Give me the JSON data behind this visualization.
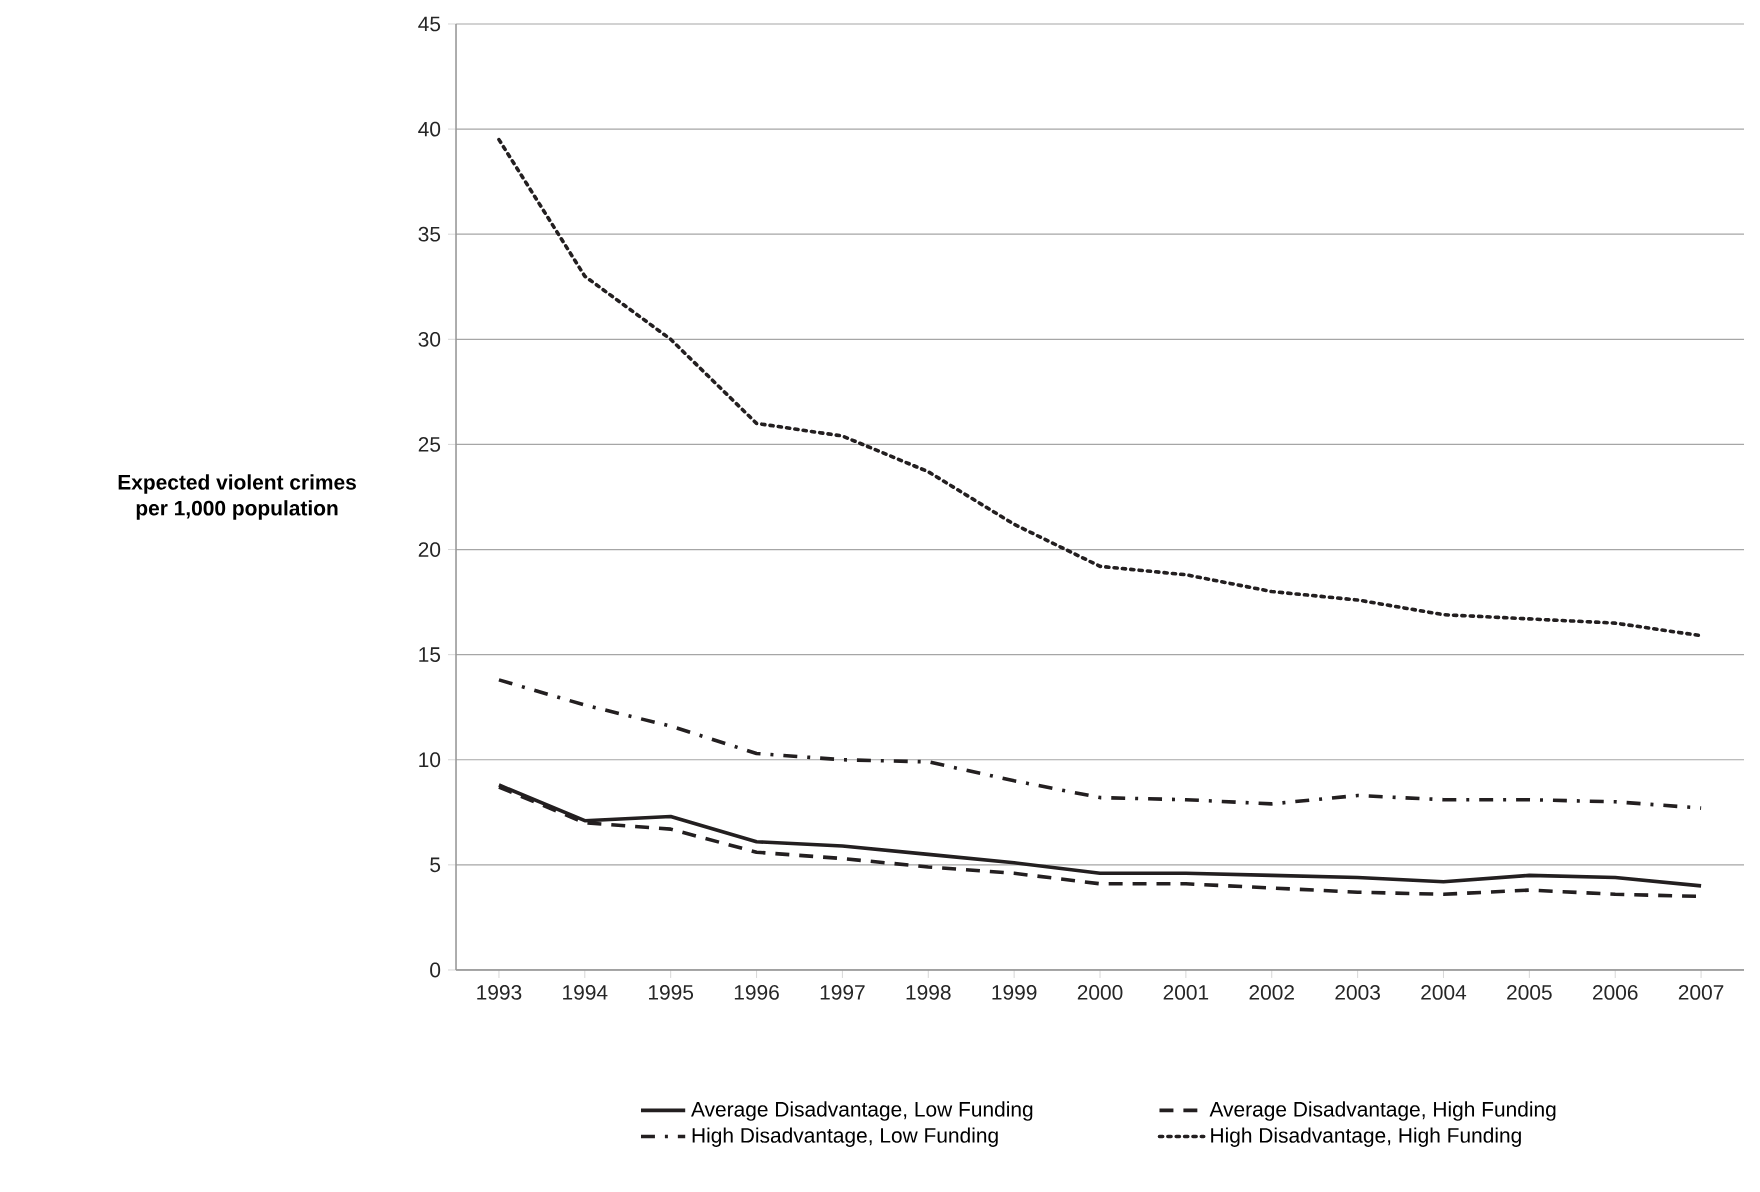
{
  "chart_data": {
    "type": "line",
    "ylabel": "Expected violent crimes\nper 1,000 population",
    "categories": [
      "1993",
      "1994",
      "1995",
      "1996",
      "1997",
      "1998",
      "1999",
      "2000",
      "2001",
      "2002",
      "2003",
      "2004",
      "2005",
      "2006",
      "2007"
    ],
    "series": [
      {
        "name": "Average Disadvantage, Low Funding",
        "color": "#231f20",
        "line_style": "solid",
        "values": [
          8.8,
          7.1,
          7.3,
          6.1,
          5.9,
          5.5,
          5.1,
          4.6,
          4.6,
          4.5,
          4.4,
          4.2,
          4.5,
          4.4,
          4.0
        ]
      },
      {
        "name": "Average Disadvantage, High Funding",
        "color": "#231f20",
        "line_style": "dashed",
        "values": [
          8.7,
          7.0,
          6.7,
          5.6,
          5.3,
          4.9,
          4.6,
          4.1,
          4.1,
          3.9,
          3.7,
          3.6,
          3.8,
          3.6,
          3.5
        ]
      },
      {
        "name": "High Disadvantage, Low Funding",
        "color": "#231f20",
        "line_style": "dashdot",
        "values": [
          13.8,
          12.6,
          11.6,
          10.3,
          10.0,
          9.9,
          9.0,
          8.2,
          8.1,
          7.9,
          8.3,
          8.1,
          8.1,
          8.0,
          7.7
        ]
      },
      {
        "name": "High Disadvantage, High Funding",
        "color": "#231f20",
        "line_style": "dotted",
        "values": [
          39.5,
          33.0,
          30.0,
          26.0,
          25.4,
          23.7,
          21.2,
          19.2,
          18.8,
          18.0,
          17.6,
          16.9,
          16.7,
          16.5,
          15.9
        ]
      }
    ],
    "ylim": [
      0,
      45
    ],
    "yticks": [
      0,
      5,
      10,
      15,
      20,
      25,
      30,
      35,
      40,
      45
    ],
    "grid": "y",
    "legend": "bottom",
    "marker": "none"
  }
}
